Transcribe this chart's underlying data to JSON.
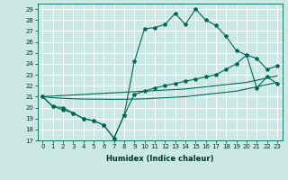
{
  "xlabel": "Humidex (Indice chaleur)",
  "bg_color": "#cce8e4",
  "grid_color": "#ffffff",
  "line_color": "#006655",
  "xlim": [
    -0.5,
    23.5
  ],
  "ylim": [
    17,
    29.5
  ],
  "xticks": [
    0,
    1,
    2,
    3,
    4,
    5,
    6,
    7,
    8,
    9,
    10,
    11,
    12,
    13,
    14,
    15,
    16,
    17,
    18,
    19,
    20,
    21,
    22,
    23
  ],
  "yticks": [
    17,
    18,
    19,
    20,
    21,
    22,
    23,
    24,
    25,
    26,
    27,
    28,
    29
  ],
  "main_y": [
    21.0,
    20.1,
    20.0,
    19.5,
    19.0,
    18.8,
    18.4,
    17.2,
    19.3,
    24.2,
    27.2,
    27.3,
    27.6,
    28.6,
    27.6,
    29.0,
    28.0,
    27.5,
    26.5,
    25.2,
    24.8,
    24.5,
    23.5,
    23.8
  ],
  "min_y": [
    21.0,
    20.1,
    19.8,
    19.5,
    19.0,
    18.8,
    18.4,
    17.2,
    19.3,
    21.2,
    21.5,
    21.8,
    22.0,
    22.2,
    22.4,
    22.6,
    22.8,
    23.0,
    23.5,
    24.0,
    24.8,
    21.8,
    22.8,
    22.2
  ],
  "mean_hi": [
    21.0,
    21.05,
    21.1,
    21.15,
    21.2,
    21.25,
    21.3,
    21.35,
    21.4,
    21.45,
    21.5,
    21.55,
    21.6,
    21.65,
    21.7,
    21.8,
    21.9,
    22.0,
    22.1,
    22.2,
    22.3,
    22.5,
    22.7,
    22.9
  ],
  "mean_lo": [
    21.0,
    20.9,
    20.85,
    20.8,
    20.78,
    20.77,
    20.76,
    20.75,
    20.76,
    20.78,
    20.8,
    20.85,
    20.9,
    20.95,
    21.0,
    21.1,
    21.2,
    21.3,
    21.4,
    21.5,
    21.7,
    21.9,
    22.1,
    22.3
  ],
  "marker": "*",
  "marker_size": 3,
  "linewidth": 0.8,
  "tick_fontsize": 5.0,
  "xlabel_fontsize": 6.0
}
